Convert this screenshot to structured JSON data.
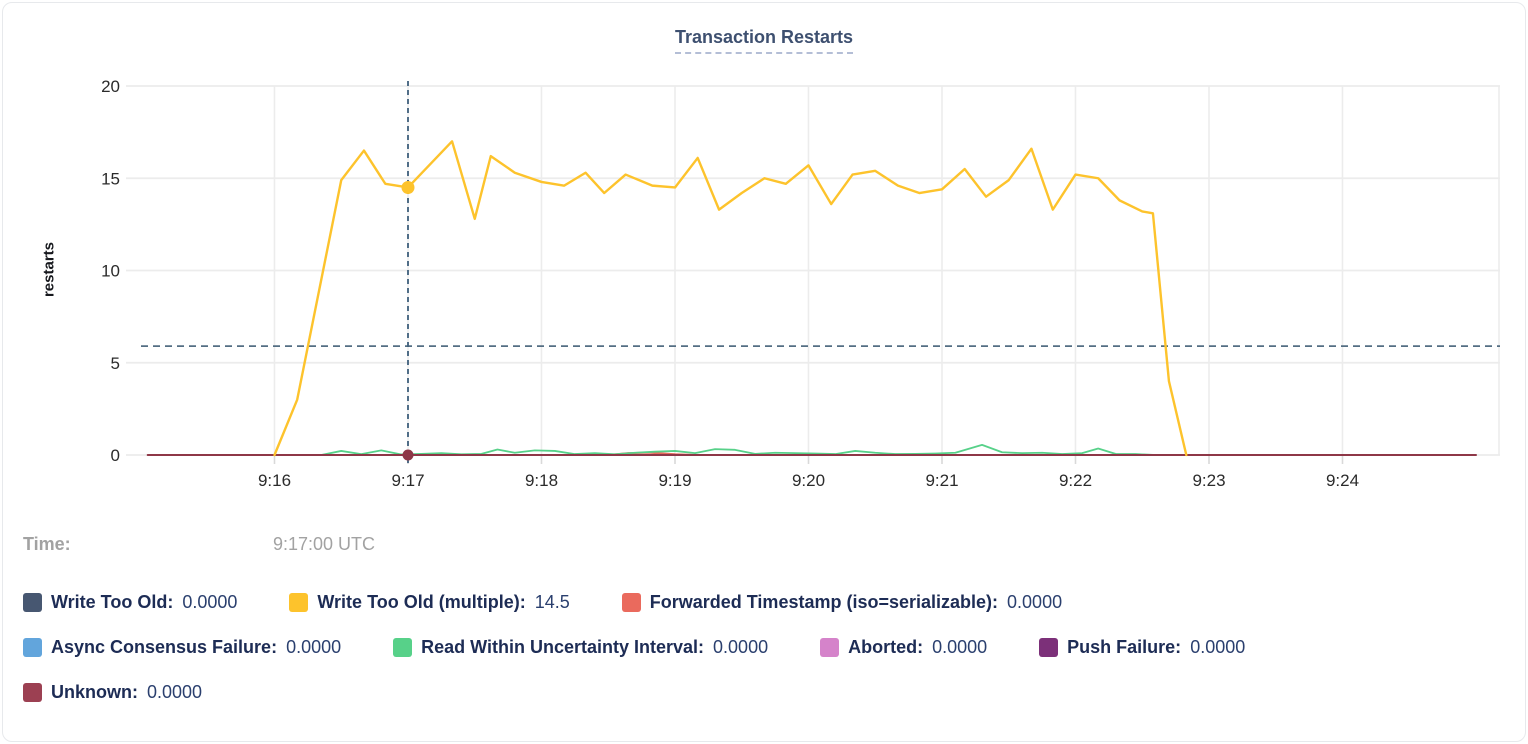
{
  "readout": {
    "time_label": "Time:",
    "time_value": "9:17:00 UTC",
    "rows": [
      [
        {
          "label": "Write Too Old:",
          "value": "0.0000",
          "color": "#475771"
        },
        {
          "label": "Write Too Old (multiple):",
          "value": "14.5",
          "color": "#fdc32c"
        },
        {
          "label": "Forwarded Timestamp (iso=serializable):",
          "value": "0.0000",
          "color": "#ea6a5d"
        }
      ],
      [
        {
          "label": "Async Consensus Failure:",
          "value": "0.0000",
          "color": "#62a5dc"
        },
        {
          "label": "Read Within Uncertainty Interval:",
          "value": "0.0000",
          "color": "#57d189"
        },
        {
          "label": "Aborted:",
          "value": "0.0000",
          "color": "#d583ca"
        },
        {
          "label": "Push Failure:",
          "value": "0.0000",
          "color": "#7c3079"
        }
      ],
      [
        {
          "label": "Unknown:",
          "value": "0.0000",
          "color": "#9c4052"
        }
      ]
    ]
  },
  "chart_data": {
    "type": "line",
    "title": "Transaction Restarts",
    "xlabel": "",
    "ylabel": "restarts",
    "ylim": [
      0,
      20
    ],
    "y_ticks": [
      0,
      5,
      10,
      15,
      20
    ],
    "x_ticks": [
      {
        "m": 16,
        "label": "9:16"
      },
      {
        "m": 17,
        "label": "9:17"
      },
      {
        "m": 18,
        "label": "9:18"
      },
      {
        "m": 19,
        "label": "9:19"
      },
      {
        "m": 20,
        "label": "9:20"
      },
      {
        "m": 21,
        "label": "9:21"
      },
      {
        "m": 22,
        "label": "9:22"
      },
      {
        "m": 23,
        "label": "9:23"
      },
      {
        "m": 24,
        "label": "9:24"
      }
    ],
    "x_domain_minutes": [
      15,
      25.2
    ],
    "grid": true,
    "legend_position": "bottom",
    "threshold_line": {
      "value": 5.9,
      "style": "dashed",
      "color": "#546e83"
    },
    "selected": {
      "time_min": 17,
      "time_label": "9:17:00 UTC",
      "crosshair_color": "#3f5f7c",
      "dots": [
        {
          "series": "Write Too Old (multiple)",
          "value": 14.5,
          "color": "#fdc32c",
          "r": 6.5
        },
        {
          "series": "Unknown",
          "value": 0,
          "color": "#8e3747",
          "r": 5.5
        }
      ]
    },
    "series": [
      {
        "name": "Write Too Old",
        "color": "#475771",
        "width": 1.8,
        "points": [
          [
            16.0,
            0
          ],
          [
            22.83,
            0
          ]
        ]
      },
      {
        "name": "Async Consensus Failure",
        "color": "#62a5dc",
        "width": 1.8,
        "points": [
          [
            16.0,
            0
          ],
          [
            22.83,
            0
          ]
        ]
      },
      {
        "name": "Aborted",
        "color": "#d583ca",
        "width": 1.8,
        "points": [
          [
            16.0,
            0
          ],
          [
            22.83,
            0
          ]
        ]
      },
      {
        "name": "Push Failure",
        "color": "#7c3079",
        "width": 1.8,
        "points": [
          [
            16.0,
            0
          ],
          [
            22.83,
            0
          ]
        ]
      },
      {
        "name": "Forwarded Timestamp (iso=serializable)",
        "color": "#ea6a5d",
        "width": 2,
        "points": [
          [
            16.0,
            0
          ],
          [
            18.5,
            0
          ],
          [
            18.65,
            0.1
          ],
          [
            18.8,
            0.13
          ],
          [
            19.0,
            0.04
          ],
          [
            19.15,
            0
          ],
          [
            22.83,
            0
          ]
        ]
      },
      {
        "name": "Read Within Uncertainty Interval",
        "color": "#57d189",
        "width": 1.8,
        "points": [
          [
            16.35,
            0
          ],
          [
            16.5,
            0.22
          ],
          [
            16.65,
            0.05
          ],
          [
            16.8,
            0.25
          ],
          [
            16.95,
            0.03
          ],
          [
            17.1,
            0.06
          ],
          [
            17.25,
            0.1
          ],
          [
            17.4,
            0.04
          ],
          [
            17.55,
            0.06
          ],
          [
            17.67,
            0.3
          ],
          [
            17.8,
            0.12
          ],
          [
            17.95,
            0.25
          ],
          [
            18.1,
            0.22
          ],
          [
            18.25,
            0.05
          ],
          [
            18.4,
            0.1
          ],
          [
            18.55,
            0.04
          ],
          [
            18.7,
            0.12
          ],
          [
            18.85,
            0.18
          ],
          [
            19.0,
            0.22
          ],
          [
            19.15,
            0.1
          ],
          [
            19.3,
            0.32
          ],
          [
            19.45,
            0.28
          ],
          [
            19.6,
            0.06
          ],
          [
            19.75,
            0.12
          ],
          [
            19.9,
            0.1
          ],
          [
            20.05,
            0.08
          ],
          [
            20.2,
            0.05
          ],
          [
            20.35,
            0.22
          ],
          [
            20.5,
            0.12
          ],
          [
            20.65,
            0.05
          ],
          [
            20.8,
            0.06
          ],
          [
            20.95,
            0.08
          ],
          [
            21.1,
            0.12
          ],
          [
            21.3,
            0.55
          ],
          [
            21.45,
            0.15
          ],
          [
            21.6,
            0.1
          ],
          [
            21.75,
            0.12
          ],
          [
            21.9,
            0.05
          ],
          [
            22.05,
            0.1
          ],
          [
            22.17,
            0.35
          ],
          [
            22.3,
            0.06
          ],
          [
            22.45,
            0.05
          ],
          [
            22.6,
            0
          ]
        ]
      },
      {
        "name": "Unknown",
        "color": "#8e3747",
        "width": 2,
        "points": [
          [
            15.05,
            0
          ],
          [
            25.0,
            0
          ]
        ]
      },
      {
        "name": "Write Too Old (multiple)",
        "color": "#fdc32c",
        "width": 2.4,
        "points": [
          [
            16.0,
            0
          ],
          [
            16.17,
            3.0
          ],
          [
            16.5,
            14.9
          ],
          [
            16.67,
            16.5
          ],
          [
            16.83,
            14.7
          ],
          [
            17.0,
            14.5
          ],
          [
            17.33,
            17.0
          ],
          [
            17.5,
            12.8
          ],
          [
            17.62,
            16.2
          ],
          [
            17.8,
            15.3
          ],
          [
            18.0,
            14.8
          ],
          [
            18.17,
            14.6
          ],
          [
            18.33,
            15.3
          ],
          [
            18.47,
            14.2
          ],
          [
            18.63,
            15.2
          ],
          [
            18.83,
            14.6
          ],
          [
            19.0,
            14.5
          ],
          [
            19.17,
            16.1
          ],
          [
            19.33,
            13.3
          ],
          [
            19.5,
            14.2
          ],
          [
            19.67,
            15.0
          ],
          [
            19.83,
            14.7
          ],
          [
            20.0,
            15.7
          ],
          [
            20.17,
            13.6
          ],
          [
            20.33,
            15.2
          ],
          [
            20.5,
            15.4
          ],
          [
            20.67,
            14.6
          ],
          [
            20.83,
            14.2
          ],
          [
            21.0,
            14.4
          ],
          [
            21.17,
            15.5
          ],
          [
            21.33,
            14.0
          ],
          [
            21.5,
            14.9
          ],
          [
            21.67,
            16.6
          ],
          [
            21.83,
            13.3
          ],
          [
            22.0,
            15.2
          ],
          [
            22.17,
            15.0
          ],
          [
            22.33,
            13.8
          ],
          [
            22.5,
            13.2
          ],
          [
            22.58,
            13.1
          ],
          [
            22.7,
            4.0
          ],
          [
            22.83,
            0
          ]
        ]
      }
    ]
  }
}
